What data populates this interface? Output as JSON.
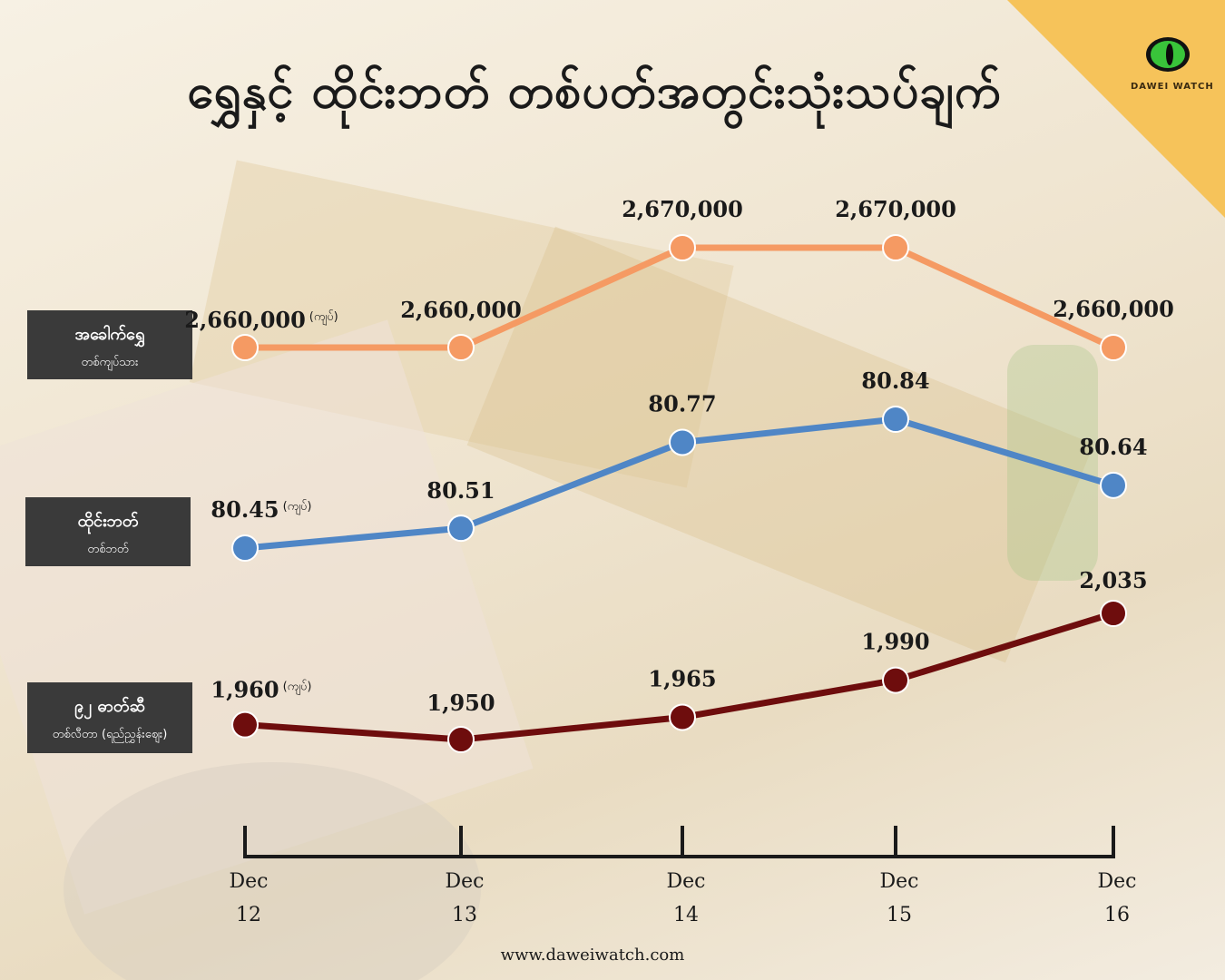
{
  "title": "ရွှေနှင့် ထိုင်းဘတ် တစ်ပတ်အတွင်းသုံးသပ်ချက်",
  "brand": "DAWEI WATCH",
  "footer": "www.daweiwatch.com",
  "unit_label": "(ကျပ်)",
  "colors": {
    "gold": "#f59a63",
    "baht": "#4f86c6",
    "fuel": "#6e0d0d",
    "corner": "#f6c35a"
  },
  "chart_data": {
    "type": "line",
    "x": [
      "Dec 12",
      "Dec 13",
      "Dec 14",
      "Dec 15",
      "Dec 16"
    ],
    "x_ticks": [
      [
        "Dec",
        "12"
      ],
      [
        "Dec",
        "13"
      ],
      [
        "Dec",
        "14"
      ],
      [
        "Dec",
        "15"
      ],
      [
        "Dec",
        "16"
      ]
    ],
    "series": [
      {
        "name": "အခေါက်ရွှေ",
        "sub": "တစ်ကျပ်သား",
        "values": [
          2660000,
          2660000,
          2670000,
          2670000,
          2660000
        ],
        "labels": [
          "2,660,000",
          "2,660,000",
          "2,670,000",
          "2,670,000",
          "2,660,000"
        ],
        "color": "#f59a63"
      },
      {
        "name": "ထိုင်းဘတ်",
        "sub": "တစ်ဘတ်",
        "values": [
          80.45,
          80.51,
          80.77,
          80.84,
          80.64
        ],
        "labels": [
          "80.45",
          "80.51",
          "80.77",
          "80.84",
          "80.64"
        ],
        "color": "#4f86c6"
      },
      {
        "name": "၉၂ ဓာတ်ဆီ",
        "sub": "တစ်လီတာ (ရည်ညွှန်းဈေး)",
        "values": [
          1960,
          1950,
          1965,
          1990,
          2035
        ],
        "labels": [
          "1,960",
          "1,950",
          "1,965",
          "1,990",
          "2,035"
        ],
        "color": "#6e0d0d"
      }
    ]
  }
}
